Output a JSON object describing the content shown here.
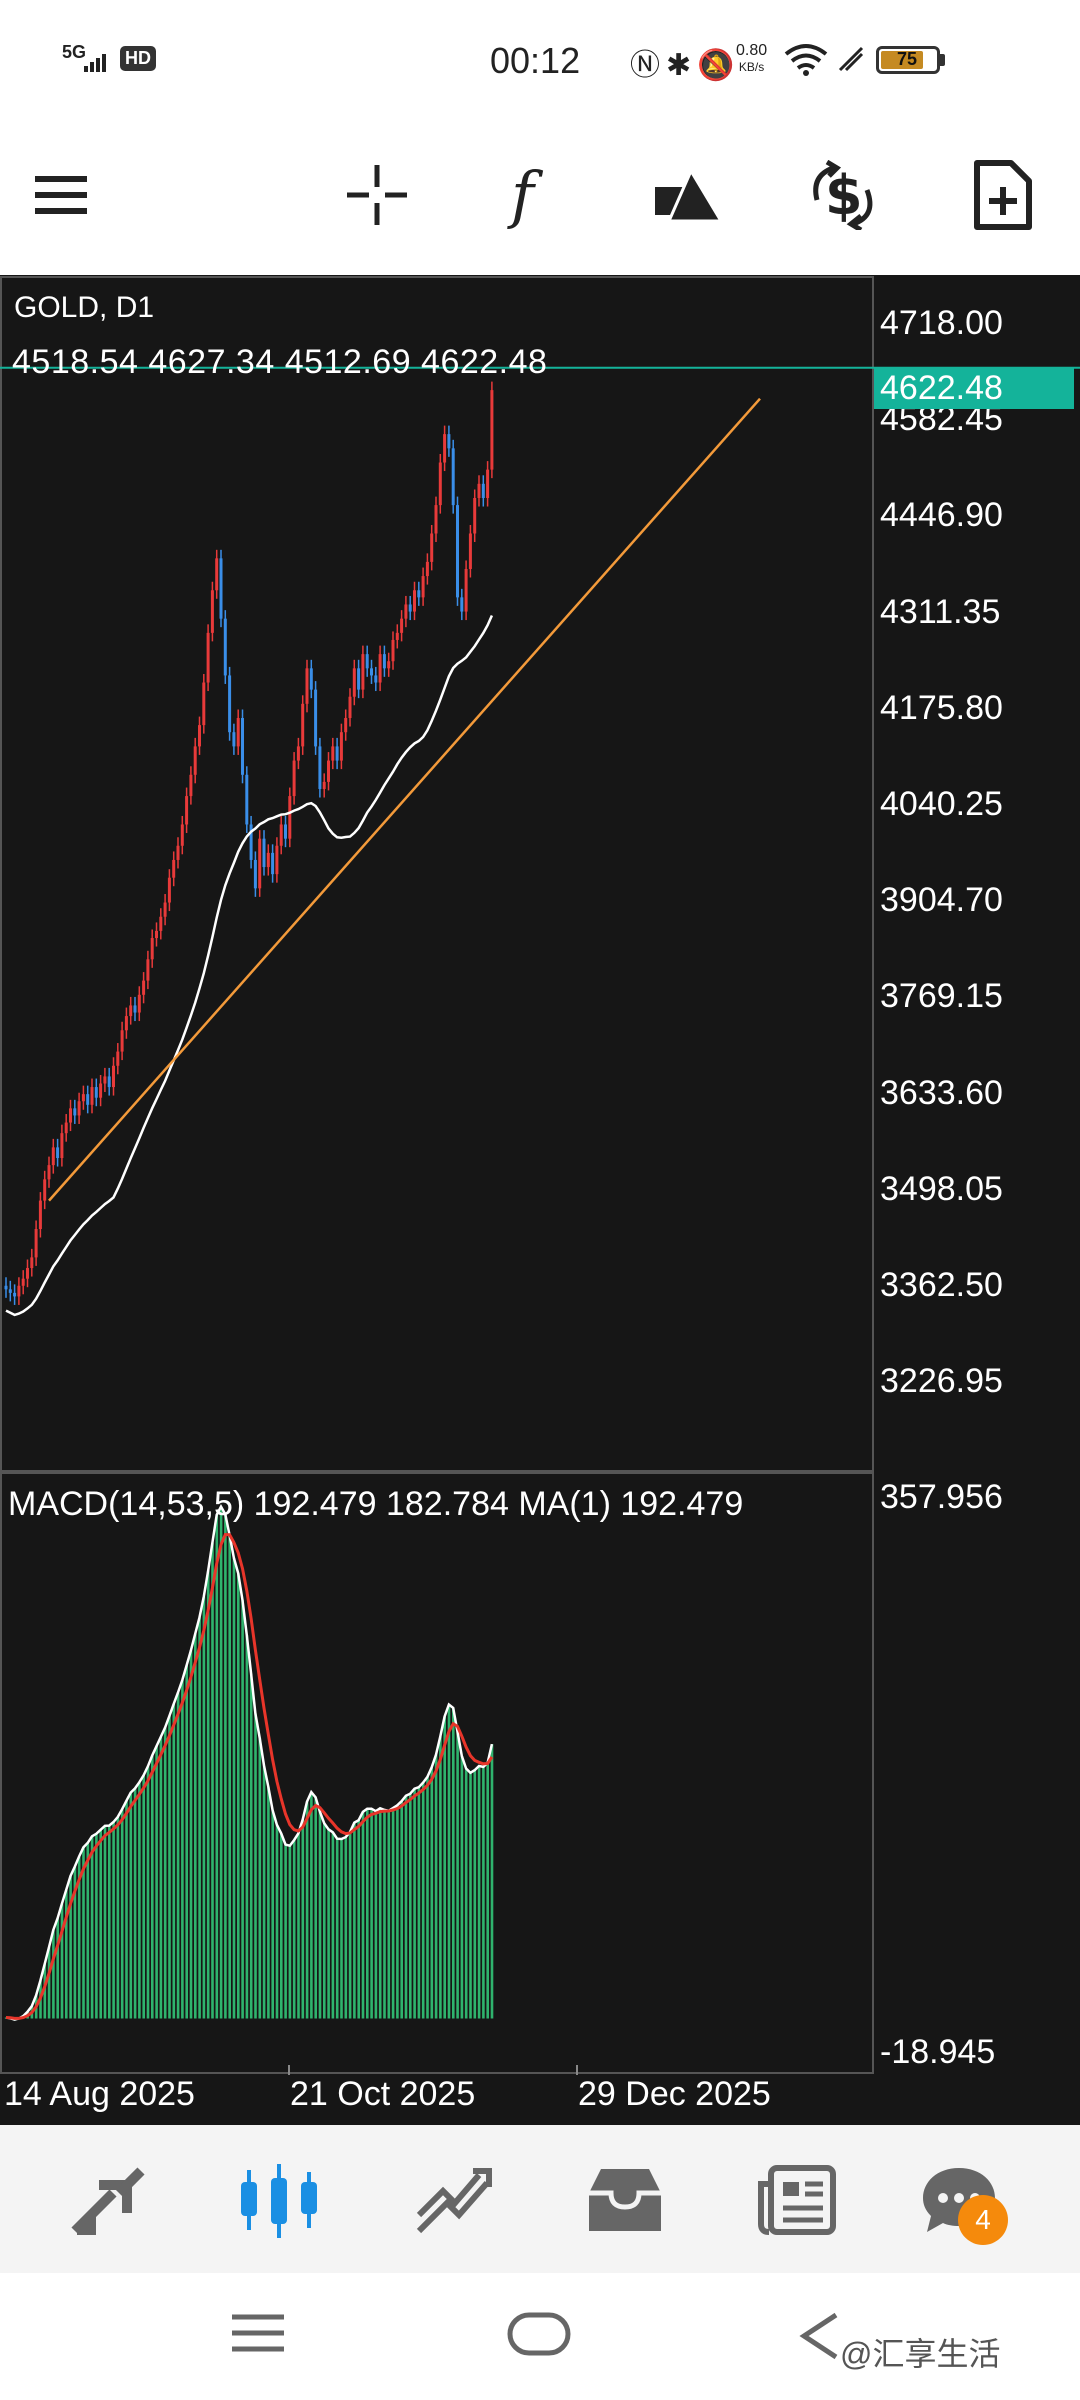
{
  "status_bar": {
    "network": "5G",
    "hd": "HD",
    "time": "00:12",
    "speed_value": "0.80",
    "speed_unit": "KB/s",
    "battery": "75"
  },
  "toolbar": {
    "icons": [
      "menu-icon",
      "crosshair-icon",
      "function-icon",
      "objects-icon",
      "trade-icon",
      "new-document-icon"
    ]
  },
  "chart": {
    "symbol": "GOLD, D1",
    "ohlc": "4518.54 4627.34 4512.69 4622.48",
    "last_price": "4622.48",
    "last_price_color": "#14b39a",
    "price_levels": [
      "4718.00",
      "4582.45",
      "4446.90",
      "4311.35",
      "4175.80",
      "4040.25",
      "3904.70",
      "3769.15",
      "3633.60",
      "3498.05",
      "3362.50",
      "3226.95"
    ],
    "bull_color": "#e83a3a",
    "bear_color": "#3a8ee8",
    "trendline_color": "#f39a3a",
    "ma_color": "#ffffff",
    "macd_label": "MACD(14,53,5) 192.479 182.784 MA(1) 192.479",
    "macd_max": "357.956",
    "macd_min": "-18.945",
    "macd_hist_color": "#2fb36d",
    "signal_color": "#e8352a",
    "dates": [
      "14 Aug 2025",
      "21 Oct 2025",
      "29 Dec 2025"
    ]
  },
  "bottom_nav": {
    "icons": [
      "quotes-icon",
      "chart-icon",
      "trade-icon",
      "history-icon",
      "news-icon",
      "messages-icon"
    ],
    "active": "chart-icon",
    "active_color": "#1a8fe3",
    "badge": "4"
  },
  "watermark": "@汇享生活"
}
